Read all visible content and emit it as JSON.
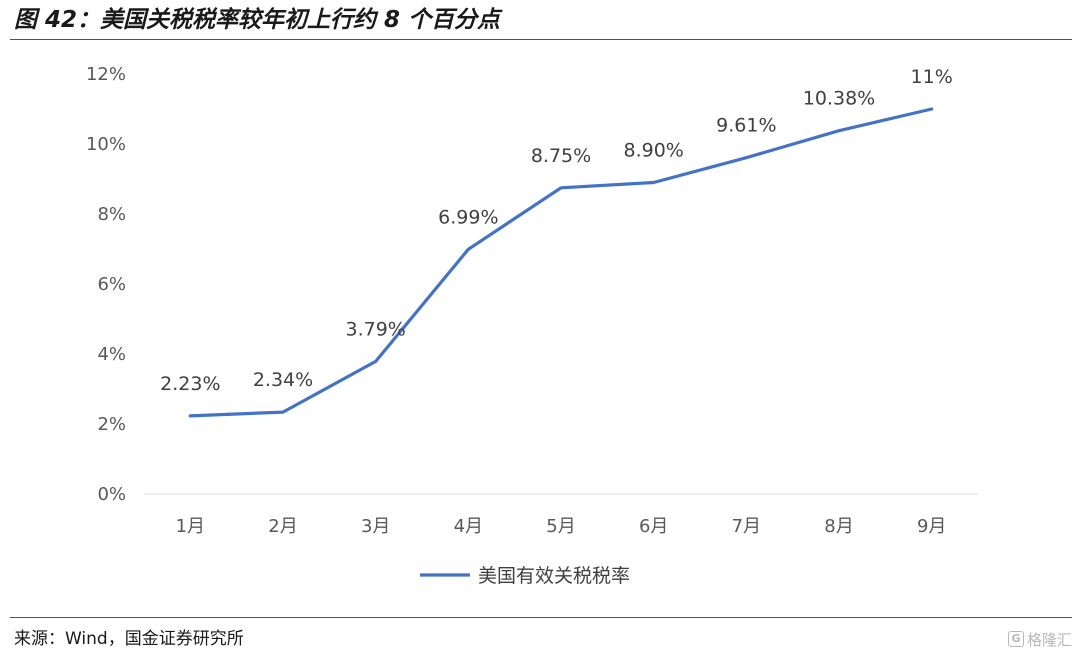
{
  "header": {
    "title": "图 42：美国关税税率较年初上行约 8 个百分点"
  },
  "footer": {
    "source": "来源：Wind，国金证券研究所",
    "watermark_text": "格隆汇",
    "watermark_icon": "G"
  },
  "chart_data": {
    "type": "line",
    "title": "",
    "xlabel": "",
    "ylabel": "",
    "categories": [
      "1月",
      "2月",
      "3月",
      "4月",
      "5月",
      "6月",
      "7月",
      "8月",
      "9月"
    ],
    "series": [
      {
        "name": "美国有效关税税率",
        "values": [
          2.23,
          2.34,
          3.79,
          6.99,
          8.75,
          8.9,
          9.61,
          10.38,
          11
        ],
        "labels": [
          "2.23%",
          "2.34%",
          "3.79%",
          "6.99%",
          "8.75%",
          "8.90%",
          "9.61%",
          "10.38%",
          "11%"
        ],
        "color": "#4472c4"
      }
    ],
    "ylim": [
      0,
      12
    ],
    "yticks": [
      0,
      2,
      4,
      6,
      8,
      10,
      12
    ],
    "ytick_labels": [
      "0%",
      "2%",
      "4%",
      "6%",
      "8%",
      "10%",
      "12%"
    ],
    "grid": false,
    "legend_position": "bottom-center"
  }
}
